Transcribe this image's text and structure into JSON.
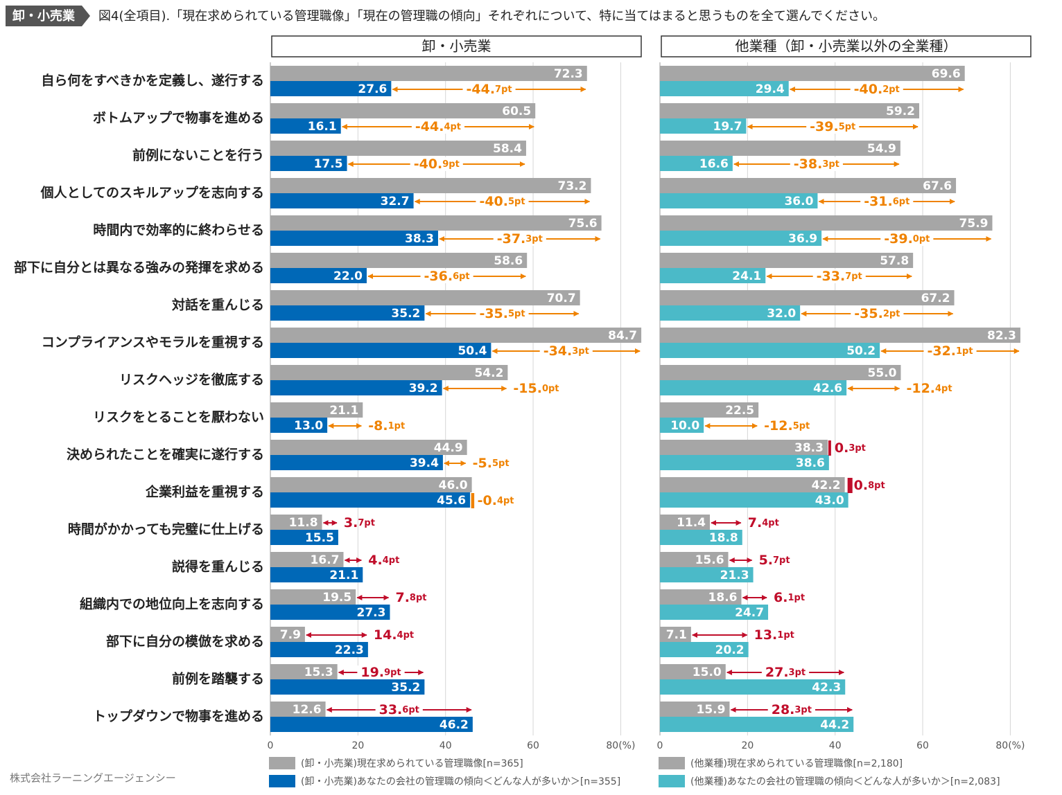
{
  "header": {
    "tag": "卸・小売業",
    "title": "図4(全項目).「現在求められている管理職像」「現在の管理職の傾向」それぞれについて、特に当てはまると思うものを全て選んでください。"
  },
  "footer": {
    "source": "株式会社ラーニングエージェンシー"
  },
  "chart_data": [
    {
      "type": "bar",
      "orientation": "horizontal",
      "title": "卸・小売業",
      "categories": [
        "自ら何をすべきかを定義し、遂行する",
        "ボトムアップで物事を進める",
        "前例にないことを行う",
        "個人としてのスキルアップを志向する",
        "時間内で効率的に終わらせる",
        "部下に自分とは異なる強みの発揮を求める",
        "対話を重んじる",
        "コンプライアンスやモラルを重視する",
        "リスクヘッジを徹底する",
        "リスクをとることを厭わない",
        "決められたことを確実に遂行する",
        "企業利益を重視する",
        "時間がかかっても完璧に仕上げる",
        "説得を重んじる",
        "組織内での地位向上を志向する",
        "部下に自分の模倣を求める",
        "前例を踏襲する",
        "トップダウンで物事を進める"
      ],
      "series": [
        {
          "name": "(卸・小売業)現在求められている管理職像[n=365]",
          "color": "#a6a6a6",
          "values": [
            72.3,
            60.5,
            58.4,
            73.2,
            75.6,
            58.6,
            70.7,
            84.7,
            54.2,
            21.1,
            44.9,
            46.0,
            11.8,
            16.7,
            19.5,
            7.9,
            15.3,
            12.6
          ],
          "value_labels": [
            "72.3",
            "60.5",
            "58.4",
            "73.2",
            "75.6",
            "58.6",
            "70.7",
            "84.7",
            "54.2",
            "21.1",
            "44.9",
            "46.0",
            "11.8",
            "16.7",
            "19.5",
            "7.9",
            "15.3",
            "12.6"
          ]
        },
        {
          "name": "(卸・小売業)あなたの会社の管理職の傾向＜どんな人が多いか＞[n=355]",
          "color": "#0068b7",
          "values": [
            27.6,
            16.1,
            17.5,
            32.7,
            38.3,
            22.0,
            35.2,
            50.4,
            39.2,
            13.0,
            39.4,
            45.6,
            15.5,
            21.1,
            27.3,
            22.3,
            35.2,
            46.2
          ],
          "value_labels": [
            "27.6",
            "16.1",
            "17.5",
            "32.7",
            "38.3",
            "22.0",
            "35.2",
            "50.4",
            "39.2",
            "13.0",
            "39.4",
            "45.6",
            "15.5",
            "21.1",
            "27.3",
            "22.3",
            "35.2",
            "46.2"
          ]
        }
      ],
      "differences": {
        "values": [
          -44.7,
          -44.4,
          -40.9,
          -40.5,
          -37.3,
          -36.6,
          -35.5,
          -34.3,
          -15.0,
          -8.1,
          -5.5,
          -0.4,
          3.7,
          4.4,
          7.8,
          14.4,
          19.9,
          33.6
        ],
        "value_labels": [
          "-44.7pt",
          "-44.4pt",
          "-40.9pt",
          "-40.5pt",
          "-37.3pt",
          "-36.6pt",
          "-35.5pt",
          "-34.3pt",
          "-15.0pt",
          "-8.1pt",
          "-5.5pt",
          "-0.4pt",
          "3.7pt",
          "4.4pt",
          "7.8pt",
          "14.4pt",
          "19.9pt",
          "33.6pt"
        ],
        "negative_color": "#ef8200",
        "positive_color": "#c00d2a"
      },
      "xlim": [
        0,
        85
      ],
      "xticks": [
        0,
        20,
        40,
        60,
        {
          "value": 80,
          "label": "80(%)"
        }
      ],
      "grid": true
    },
    {
      "type": "bar",
      "orientation": "horizontal",
      "title": "他業種（卸・小売業以外の全業種）",
      "series": [
        {
          "name": "(他業種)現在求められている管理職像[n=2,180]",
          "color": "#a6a6a6",
          "values": [
            69.6,
            59.2,
            54.9,
            67.6,
            75.9,
            57.8,
            67.2,
            82.3,
            55.0,
            22.5,
            38.3,
            42.2,
            11.4,
            15.6,
            18.6,
            7.1,
            15.0,
            15.9
          ],
          "value_labels": [
            "69.6",
            "59.2",
            "54.9",
            "67.6",
            "75.9",
            "57.8",
            "67.2",
            "82.3",
            "55.0",
            "22.5",
            "38.3",
            "42.2",
            "11.4",
            "15.6",
            "18.6",
            "7.1",
            "15.0",
            "15.9"
          ]
        },
        {
          "name": "(他業種)あなたの会社の管理職の傾向＜どんな人が多いか＞[n=2,083]",
          "color": "#4bbac8",
          "values": [
            29.4,
            19.7,
            16.6,
            36.0,
            36.9,
            24.1,
            32.0,
            50.2,
            42.6,
            10.0,
            38.6,
            43.0,
            18.8,
            21.3,
            24.7,
            20.2,
            42.3,
            44.2
          ],
          "value_labels": [
            "29.4",
            "19.7",
            "16.6",
            "36.0",
            "36.9",
            "24.1",
            "32.0",
            "50.2",
            "42.6",
            "10.0",
            "38.6",
            "43.0",
            "18.8",
            "21.3",
            "24.7",
            "20.2",
            "42.3",
            "44.2"
          ]
        }
      ],
      "differences": {
        "values": [
          -40.2,
          -39.5,
          -38.3,
          -31.6,
          -39.0,
          -33.7,
          -35.2,
          -32.1,
          -12.4,
          -12.5,
          0.3,
          0.8,
          7.4,
          5.7,
          6.1,
          13.1,
          27.3,
          28.3
        ],
        "value_labels": [
          "-40.2pt",
          "-39.5pt",
          "-38.3pt",
          "-31.6pt",
          "-39.0pt",
          "-33.7pt",
          "-35.2pt",
          "-32.1pt",
          "-12.4pt",
          "-12.5pt",
          "0.3pt",
          "0.8pt",
          "7.4pt",
          "5.7pt",
          "6.1pt",
          "13.1pt",
          "27.3pt",
          "28.3pt"
        ],
        "negative_color": "#ef8200",
        "positive_color": "#c00d2a"
      },
      "xlim": [
        0,
        85
      ],
      "xticks": [
        0,
        20,
        40,
        60,
        {
          "value": 80,
          "label": "80(%)"
        }
      ],
      "grid": true
    }
  ]
}
